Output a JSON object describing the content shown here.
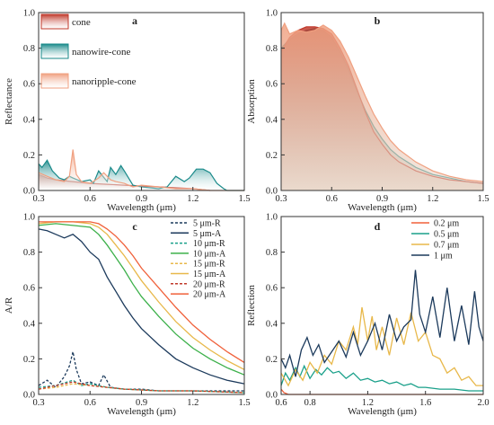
{
  "chart_data": [
    {
      "panel": "a",
      "type": "area",
      "ylabel": "Reflectance",
      "xlabel": "Wavelength (μm)",
      "xlim": [
        0.3,
        1.5
      ],
      "ylim": [
        0.0,
        1.0
      ],
      "xticks": [
        0.3,
        0.6,
        0.9,
        1.2,
        1.5
      ],
      "xtick_labels": [
        "0.3",
        "0.6",
        "0.9",
        "1.2",
        "1.5"
      ],
      "yticks": [
        0.0,
        0.2,
        0.4,
        0.6,
        0.8,
        1.0
      ],
      "ytick_labels": [
        "0.0",
        "0.2",
        "0.4",
        "0.6",
        "0.8",
        "1.0"
      ],
      "legend_position": "top-left",
      "series": [
        {
          "name": "cone",
          "color": "#c0392b",
          "x": [
            0.3,
            0.35,
            0.4,
            0.45,
            0.5,
            0.6,
            0.7,
            0.8,
            0.9,
            1.0,
            1.1,
            1.2,
            1.3
          ],
          "y": [
            0.09,
            0.07,
            0.06,
            0.055,
            0.05,
            0.04,
            0.035,
            0.03,
            0.025,
            0.02,
            0.015,
            0.01,
            0.0
          ]
        },
        {
          "name": "nanowire-cone",
          "color": "#1a8a8a",
          "x": [
            0.3,
            0.32,
            0.35,
            0.38,
            0.42,
            0.45,
            0.48,
            0.5,
            0.55,
            0.6,
            0.62,
            0.65,
            0.7,
            0.72,
            0.75,
            0.78,
            0.8,
            0.85,
            0.9,
            0.95,
            1.0,
            1.05,
            1.1,
            1.15,
            1.18,
            1.22,
            1.26,
            1.3,
            1.34,
            1.38,
            1.4,
            1.45,
            1.5
          ],
          "y": [
            0.15,
            0.13,
            0.17,
            0.11,
            0.07,
            0.06,
            0.08,
            0.07,
            0.05,
            0.06,
            0.04,
            0.11,
            0.05,
            0.13,
            0.09,
            0.14,
            0.11,
            0.03,
            0.02,
            0.015,
            0.01,
            0.02,
            0.08,
            0.05,
            0.07,
            0.12,
            0.12,
            0.1,
            0.04,
            0.01,
            0.0,
            0.0,
            0.0
          ]
        },
        {
          "name": "nanoripple-cone",
          "color": "#f0a080",
          "x": [
            0.3,
            0.35,
            0.4,
            0.45,
            0.48,
            0.5,
            0.52,
            0.55,
            0.6,
            0.65,
            0.68,
            0.72,
            0.75,
            0.8,
            0.85,
            0.9,
            1.0,
            1.1,
            1.2,
            1.3,
            1.4,
            1.5
          ],
          "y": [
            0.1,
            0.08,
            0.06,
            0.05,
            0.08,
            0.23,
            0.09,
            0.05,
            0.04,
            0.07,
            0.1,
            0.06,
            0.05,
            0.04,
            0.02,
            0.03,
            0.02,
            0.01,
            0.01,
            0.0,
            0.0,
            0.0
          ]
        }
      ]
    },
    {
      "panel": "b",
      "type": "area",
      "ylabel": "Absorption",
      "xlabel": "Wavelength (μm)",
      "xlim": [
        0.3,
        1.5
      ],
      "ylim": [
        0.0,
        1.0
      ],
      "xticks": [
        0.3,
        0.6,
        0.9,
        1.2,
        1.5
      ],
      "xtick_labels": [
        "0.3",
        "0.6",
        "0.9",
        "1.2",
        "1.5"
      ],
      "yticks": [
        0.0,
        0.2,
        0.4,
        0.6,
        0.8,
        1.0
      ],
      "ytick_labels": [
        "0.0",
        "0.2",
        "0.4",
        "0.6",
        "0.8",
        "1.0"
      ],
      "series": [
        {
          "color": "#1a8a8a",
          "x": [
            0.3,
            0.35,
            0.4,
            0.45,
            0.5,
            0.55,
            0.6,
            0.65,
            0.7,
            0.75,
            0.8,
            0.85,
            0.9,
            0.95,
            1.0,
            1.1,
            1.2,
            1.3,
            1.4,
            1.5
          ],
          "y": [
            0.8,
            0.85,
            0.88,
            0.9,
            0.91,
            0.9,
            0.86,
            0.78,
            0.68,
            0.56,
            0.45,
            0.36,
            0.29,
            0.23,
            0.19,
            0.13,
            0.09,
            0.07,
            0.05,
            0.04
          ]
        },
        {
          "color": "#c0392b",
          "x": [
            0.3,
            0.35,
            0.4,
            0.45,
            0.5,
            0.55,
            0.6,
            0.65,
            0.7,
            0.75,
            0.8,
            0.85,
            0.9,
            0.95,
            1.0,
            1.1,
            1.2,
            1.3,
            1.4,
            1.5
          ],
          "y": [
            0.78,
            0.86,
            0.9,
            0.92,
            0.92,
            0.91,
            0.88,
            0.8,
            0.7,
            0.57,
            0.44,
            0.33,
            0.26,
            0.2,
            0.16,
            0.11,
            0.08,
            0.06,
            0.05,
            0.04
          ]
        },
        {
          "color": "#f0a080",
          "x": [
            0.3,
            0.32,
            0.35,
            0.4,
            0.45,
            0.5,
            0.55,
            0.6,
            0.65,
            0.7,
            0.75,
            0.8,
            0.85,
            0.9,
            0.95,
            1.0,
            1.1,
            1.2,
            1.3,
            1.4,
            1.5
          ],
          "y": [
            0.9,
            0.94,
            0.88,
            0.9,
            0.89,
            0.9,
            0.93,
            0.9,
            0.84,
            0.75,
            0.64,
            0.53,
            0.43,
            0.35,
            0.28,
            0.23,
            0.16,
            0.11,
            0.08,
            0.06,
            0.05
          ]
        }
      ]
    },
    {
      "panel": "c",
      "type": "line",
      "ylabel": "A/R",
      "xlabel": "Wavelength (μm)",
      "xlim": [
        0.3,
        1.5
      ],
      "ylim": [
        0.0,
        1.0
      ],
      "xticks": [
        0.3,
        0.6,
        0.9,
        1.2,
        1.5
      ],
      "xtick_labels": [
        "0.3",
        "0.6",
        "0.9",
        "1.2",
        "1.5"
      ],
      "yticks": [
        0.0,
        0.2,
        0.4,
        0.6,
        0.8,
        1.0
      ],
      "ytick_labels": [
        "0.0",
        "0.2",
        "0.4",
        "0.6",
        "0.8",
        "1.0"
      ],
      "legend_position": "top-right",
      "series": [
        {
          "name": "5 μm-R",
          "color": "#1c3a5c",
          "dash": "3,2",
          "x": [
            0.3,
            0.35,
            0.4,
            0.45,
            0.48,
            0.5,
            0.52,
            0.55,
            0.6,
            0.65,
            0.68,
            0.72,
            0.8,
            0.9,
            1.0,
            1.2,
            1.5
          ],
          "y": [
            0.05,
            0.08,
            0.04,
            0.1,
            0.16,
            0.24,
            0.14,
            0.06,
            0.07,
            0.05,
            0.11,
            0.04,
            0.03,
            0.03,
            0.02,
            0.02,
            0.02
          ]
        },
        {
          "name": "5 μm-A",
          "color": "#1c3a5c",
          "dash": "",
          "x": [
            0.3,
            0.35,
            0.4,
            0.45,
            0.5,
            0.55,
            0.6,
            0.65,
            0.7,
            0.75,
            0.8,
            0.85,
            0.9,
            1.0,
            1.1,
            1.2,
            1.3,
            1.4,
            1.5
          ],
          "y": [
            0.93,
            0.92,
            0.9,
            0.88,
            0.9,
            0.86,
            0.8,
            0.76,
            0.66,
            0.58,
            0.5,
            0.43,
            0.37,
            0.28,
            0.2,
            0.15,
            0.11,
            0.08,
            0.06
          ]
        },
        {
          "name": "10 μm-R",
          "color": "#1aa08a",
          "dash": "3,2",
          "x": [
            0.3,
            0.4,
            0.5,
            0.55,
            0.6,
            0.7,
            0.8,
            1.0,
            1.2,
            1.5
          ],
          "y": [
            0.04,
            0.05,
            0.08,
            0.05,
            0.06,
            0.04,
            0.03,
            0.02,
            0.02,
            0.01
          ]
        },
        {
          "name": "10 μm-A",
          "color": "#3cb04a",
          "dash": "",
          "x": [
            0.3,
            0.4,
            0.5,
            0.6,
            0.65,
            0.7,
            0.75,
            0.8,
            0.85,
            0.9,
            1.0,
            1.1,
            1.2,
            1.3,
            1.4,
            1.5
          ],
          "y": [
            0.95,
            0.96,
            0.95,
            0.94,
            0.9,
            0.84,
            0.77,
            0.7,
            0.62,
            0.55,
            0.44,
            0.34,
            0.26,
            0.2,
            0.15,
            0.11
          ]
        },
        {
          "name": "15 μm-R",
          "color": "#e8b84a",
          "dash": "3,2",
          "x": [
            0.3,
            0.4,
            0.5,
            0.6,
            0.7,
            0.8,
            1.0,
            1.2,
            1.5
          ],
          "y": [
            0.03,
            0.04,
            0.06,
            0.05,
            0.04,
            0.03,
            0.02,
            0.02,
            0.01
          ]
        },
        {
          "name": "15 μm-A",
          "color": "#e8b84a",
          "dash": "",
          "x": [
            0.3,
            0.4,
            0.5,
            0.6,
            0.65,
            0.7,
            0.75,
            0.8,
            0.85,
            0.9,
            1.0,
            1.1,
            1.2,
            1.3,
            1.4,
            1.5
          ],
          "y": [
            0.96,
            0.97,
            0.97,
            0.96,
            0.94,
            0.9,
            0.84,
            0.78,
            0.71,
            0.64,
            0.52,
            0.41,
            0.32,
            0.25,
            0.19,
            0.14
          ]
        },
        {
          "name": "20 μm-R",
          "color": "#c0392b",
          "dash": "3,2",
          "x": [
            0.3,
            0.4,
            0.5,
            0.6,
            0.7,
            0.8,
            1.0,
            1.2,
            1.5
          ],
          "y": [
            0.03,
            0.05,
            0.07,
            0.05,
            0.04,
            0.03,
            0.02,
            0.02,
            0.01
          ]
        },
        {
          "name": "20 μm-A",
          "color": "#f0603a",
          "dash": "",
          "x": [
            0.3,
            0.4,
            0.5,
            0.6,
            0.65,
            0.7,
            0.75,
            0.8,
            0.85,
            0.9,
            1.0,
            1.1,
            1.2,
            1.3,
            1.4,
            1.5
          ],
          "y": [
            0.97,
            0.97,
            0.97,
            0.97,
            0.96,
            0.93,
            0.89,
            0.84,
            0.78,
            0.71,
            0.6,
            0.49,
            0.39,
            0.31,
            0.24,
            0.18
          ]
        }
      ]
    },
    {
      "panel": "d",
      "type": "line",
      "ylabel": "Reflection",
      "xlabel": "Wavelength (μm)",
      "xlim": [
        0.6,
        2.0
      ],
      "ylim": [
        0.0,
        1.0
      ],
      "xticks": [
        0.6,
        0.8,
        1.2,
        1.6,
        2.0
      ],
      "xtick_labels": [
        "0.6",
        "0.8",
        "1.2",
        "1.6",
        "2.0"
      ],
      "yticks": [
        0.0,
        0.2,
        0.4,
        0.6,
        0.8,
        1.0
      ],
      "ytick_labels": [
        "0.0",
        "0.2",
        "0.4",
        "0.6",
        "0.8",
        "1.0"
      ],
      "legend_position": "top-right",
      "series": [
        {
          "name": "0.2 μm",
          "color": "#f0603a",
          "x": [
            0.6,
            0.62,
            0.65,
            0.7,
            0.8,
            1.0,
            1.2,
            1.4,
            1.6,
            1.8,
            2.0
          ],
          "y": [
            0.03,
            0.01,
            0.0,
            0.0,
            0.0,
            0.0,
            0.0,
            0.0,
            0.0,
            0.0,
            0.0
          ]
        },
        {
          "name": "0.5 μm",
          "color": "#1aa08a",
          "x": [
            0.6,
            0.63,
            0.66,
            0.7,
            0.73,
            0.76,
            0.8,
            0.84,
            0.88,
            0.92,
            0.96,
            1.0,
            1.05,
            1.1,
            1.15,
            1.2,
            1.25,
            1.3,
            1.35,
            1.4,
            1.45,
            1.5,
            1.55,
            1.6,
            1.7,
            1.8,
            1.9,
            2.0
          ],
          "y": [
            0.05,
            0.12,
            0.08,
            0.15,
            0.1,
            0.16,
            0.09,
            0.14,
            0.11,
            0.15,
            0.12,
            0.13,
            0.09,
            0.12,
            0.08,
            0.09,
            0.07,
            0.08,
            0.06,
            0.07,
            0.05,
            0.06,
            0.04,
            0.04,
            0.03,
            0.03,
            0.02,
            0.02
          ]
        },
        {
          "name": "0.7 μm",
          "color": "#e8b84a",
          "x": [
            0.6,
            0.65,
            0.7,
            0.75,
            0.8,
            0.85,
            0.9,
            0.95,
            1.0,
            1.05,
            1.1,
            1.13,
            1.16,
            1.2,
            1.23,
            1.26,
            1.3,
            1.35,
            1.4,
            1.45,
            1.5,
            1.55,
            1.6,
            1.65,
            1.7,
            1.75,
            1.8,
            1.85,
            1.9,
            1.95,
            2.0
          ],
          "y": [
            0.12,
            0.05,
            0.14,
            0.08,
            0.18,
            0.12,
            0.22,
            0.17,
            0.3,
            0.25,
            0.38,
            0.28,
            0.49,
            0.3,
            0.44,
            0.25,
            0.38,
            0.22,
            0.43,
            0.28,
            0.46,
            0.3,
            0.35,
            0.22,
            0.2,
            0.12,
            0.15,
            0.08,
            0.1,
            0.05,
            0.05
          ]
        },
        {
          "name": "1 μm",
          "color": "#1c3a5c",
          "x": [
            0.6,
            0.63,
            0.66,
            0.7,
            0.74,
            0.78,
            0.82,
            0.86,
            0.9,
            0.95,
            1.0,
            1.05,
            1.1,
            1.15,
            1.2,
            1.25,
            1.3,
            1.35,
            1.4,
            1.45,
            1.5,
            1.53,
            1.56,
            1.6,
            1.65,
            1.7,
            1.75,
            1.8,
            1.85,
            1.9,
            1.94,
            1.97,
            2.0
          ],
          "y": [
            0.2,
            0.15,
            0.22,
            0.1,
            0.25,
            0.32,
            0.22,
            0.28,
            0.18,
            0.24,
            0.3,
            0.21,
            0.35,
            0.22,
            0.3,
            0.4,
            0.25,
            0.45,
            0.3,
            0.38,
            0.42,
            0.7,
            0.45,
            0.35,
            0.55,
            0.32,
            0.6,
            0.3,
            0.5,
            0.28,
            0.58,
            0.38,
            0.3
          ]
        }
      ]
    }
  ]
}
